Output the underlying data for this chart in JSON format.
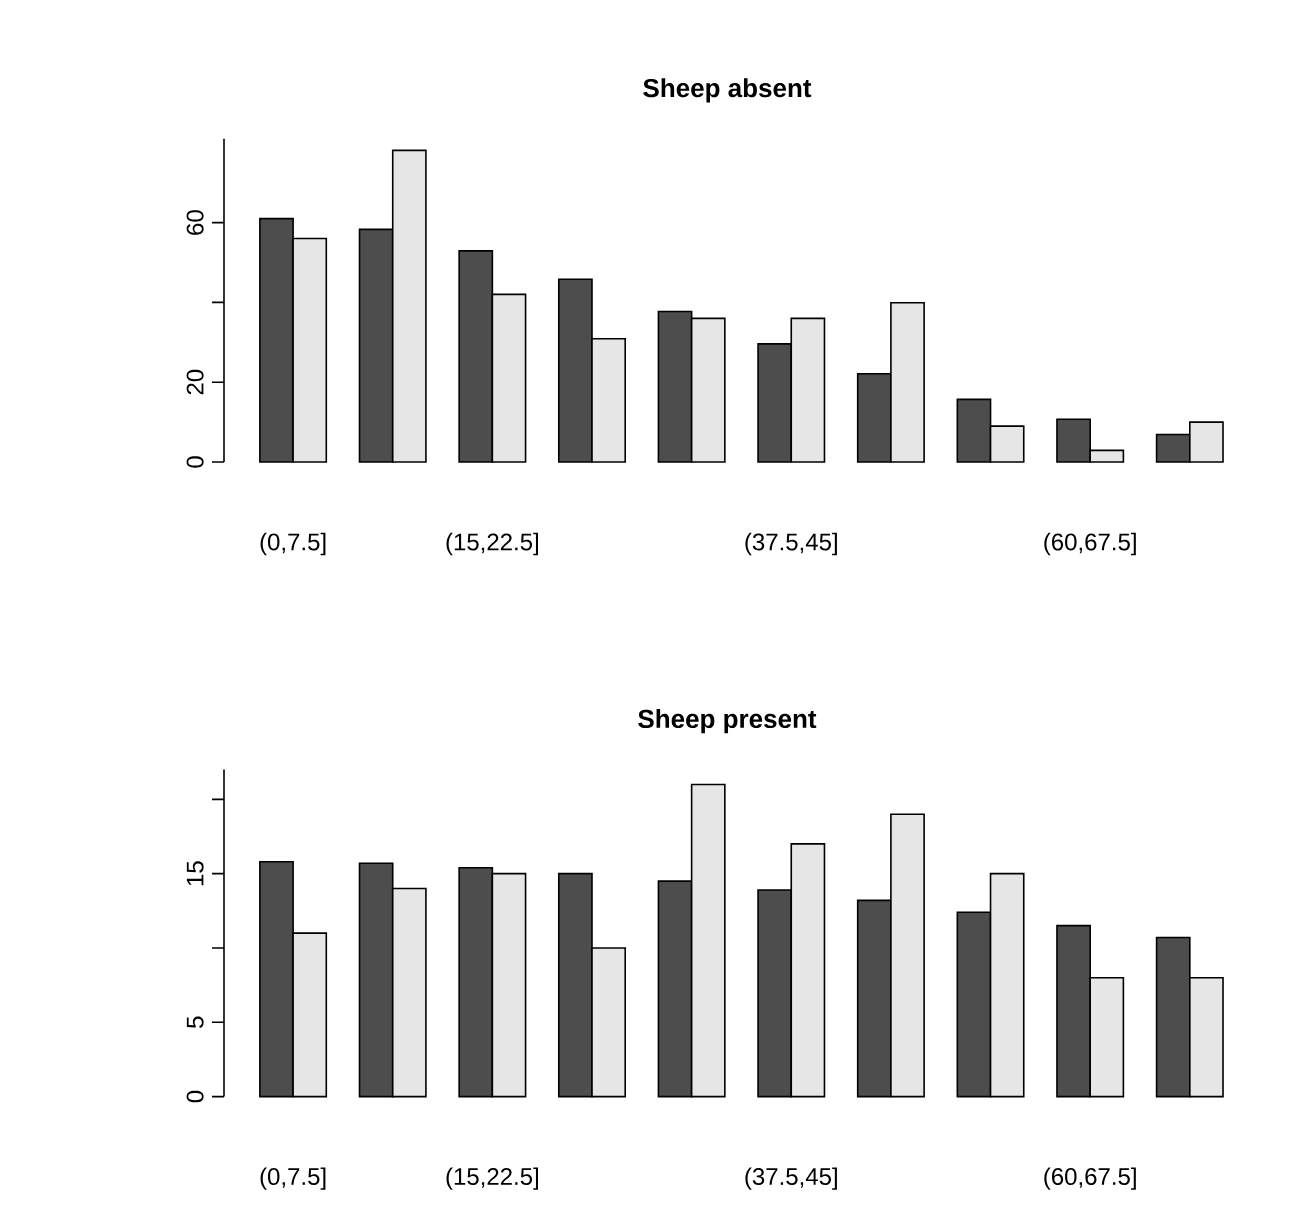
{
  "chart_data": [
    {
      "type": "bar",
      "title": "Sheep absent",
      "categories": [
        "(0,7.5]",
        null,
        "(15,22.5]",
        null,
        null,
        "(37.5,45]",
        null,
        null,
        "(60,67.5]",
        null
      ],
      "series": [
        {
          "color": "#4d4d4d",
          "values": [
            61.0,
            58.3,
            52.9,
            45.8,
            37.7,
            29.6,
            22.1,
            15.7,
            10.7,
            6.9
          ]
        },
        {
          "color": "#e6e6e6",
          "values": [
            56.0,
            78.1,
            42.0,
            30.9,
            36.0,
            36.0,
            39.9,
            9.0,
            2.9,
            10.0
          ]
        }
      ],
      "ylim": [
        0,
        81
      ],
      "yticks": [
        0,
        20,
        {
          "value": 40,
          "label": null
        },
        60
      ]
    },
    {
      "type": "bar",
      "title": "Sheep present",
      "categories": [
        "(0,7.5]",
        null,
        "(15,22.5]",
        null,
        null,
        "(37.5,45]",
        null,
        null,
        "(60,67.5]",
        null
      ],
      "series": [
        {
          "color": "#4d4d4d",
          "values": [
            15.8,
            15.7,
            15.4,
            15.0,
            14.5,
            13.9,
            13.2,
            12.4,
            11.5,
            10.7
          ]
        },
        {
          "color": "#e6e6e6",
          "values": [
            11.0,
            14.0,
            15.0,
            10.0,
            21.0,
            17.0,
            19.0,
            15.0,
            8.0,
            8.0
          ]
        }
      ],
      "ylim": [
        0,
        22
      ],
      "yticks": [
        0,
        5,
        {
          "value": 10,
          "label": null
        },
        15,
        {
          "value": 20,
          "label": null
        }
      ]
    }
  ]
}
